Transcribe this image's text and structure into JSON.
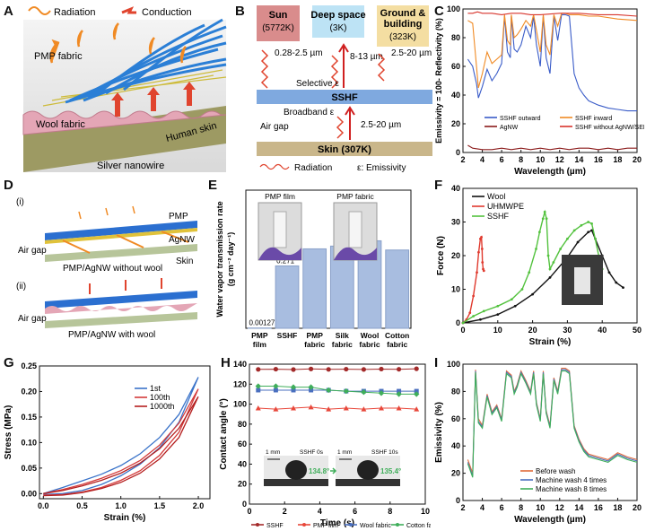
{
  "panels": {
    "A": {
      "letter": "A",
      "radiation": "Radiation",
      "conduction": "Conduction",
      "pmp_fabric": "PMP fabric",
      "wool_fabric": "Wool fabric",
      "silver_nanowire": "Silver nanowire",
      "human_skin": "Human skin"
    },
    "B": {
      "letter": "B",
      "sun": "Sun",
      "sun_temp": "(5772K)",
      "space": "Deep space",
      "space_temp": "(3K)",
      "ground": "Ground &",
      "ground2": "building",
      "ground_temp": "(323K)",
      "w1": "0.28-2.5 µm",
      "w2": "8-13 µm",
      "w3": "2.5-20 µm",
      "w4": "2.5-20 µm",
      "selective": "Selective ε",
      "ssfh": "SSHF",
      "broadband": "Broadband ε",
      "airgap": "Air gap",
      "skin": "Skin (307K)",
      "legend_rad": "Radiation",
      "legend_emis": "ε: Emissivity"
    },
    "D": {
      "letter": "D",
      "i": "(i)",
      "ii": "(ii)",
      "pmp": "PMP",
      "agnw": "AgNW",
      "airgap1": "Air gap",
      "skin": "Skin",
      "cap1": "PMP/AgNW without wool",
      "airgap2": "Air gap",
      "cap2": "PMP/AgNW with wool"
    },
    "E": {
      "letter": "E",
      "photo1": "PMP film",
      "photo2": "PMP fabric"
    },
    "F": {
      "letter": "F"
    },
    "G": {
      "letter": "G"
    },
    "H": {
      "letter": "H",
      "sb1": "1 mm",
      "img1": "SSHF 0s",
      "ang1": "134.8°",
      "sb2": "1 mm",
      "img2": "SSHF 10s",
      "ang2": "135.4°"
    },
    "I": {
      "letter": "I"
    },
    "C": {
      "letter": "C"
    }
  },
  "chart_data": [
    {
      "id": "C",
      "type": "line",
      "xlabel": "Wavelength (µm)",
      "ylabel": "Emissivity = 100- Reflectivity (%)",
      "xlim": [
        2,
        20
      ],
      "ylim": [
        0,
        100
      ],
      "xticks": [
        2,
        4,
        6,
        8,
        10,
        12,
        14,
        16,
        18,
        20
      ],
      "yticks": [
        0,
        20,
        40,
        60,
        80,
        100
      ],
      "series": [
        {
          "name": "SSHF outward",
          "color": "#3a5cc8",
          "x": [
            2.5,
            3,
            3.4,
            3.6,
            4,
            4.5,
            5,
            5.5,
            6,
            6.3,
            6.6,
            6.9,
            7,
            7.3,
            7.6,
            8,
            8.5,
            9,
            9.3,
            9.6,
            10,
            10.3,
            10.6,
            11,
            11.4,
            11.8,
            12.2,
            12.6,
            13,
            13.5,
            14,
            14.5,
            15,
            16,
            17,
            18,
            19,
            20
          ],
          "y": [
            65,
            60,
            48,
            38,
            46,
            58,
            50,
            55,
            62,
            95,
            70,
            66,
            95,
            72,
            70,
            75,
            88,
            80,
            95,
            75,
            60,
            95,
            66,
            55,
            95,
            78,
            96,
            96,
            95,
            55,
            45,
            40,
            36,
            33,
            31,
            30,
            29,
            29
          ]
        },
        {
          "name": "SSHF inward",
          "color": "#f08a24",
          "x": [
            2.5,
            3,
            3.4,
            3.6,
            4,
            4.5,
            5,
            5.5,
            6,
            6.3,
            6.6,
            6.9,
            7,
            7.3,
            7.6,
            8,
            8.5,
            9,
            9.3,
            9.6,
            10,
            10.3,
            10.6,
            11,
            11.4,
            11.8,
            12.2,
            12.6,
            13,
            14,
            15,
            16,
            18,
            20
          ],
          "y": [
            92,
            90,
            60,
            45,
            55,
            70,
            62,
            65,
            68,
            96,
            78,
            75,
            96,
            80,
            82,
            86,
            92,
            88,
            96,
            85,
            70,
            96,
            75,
            68,
            96,
            88,
            97,
            97,
            96,
            96,
            95,
            95,
            93,
            92
          ]
        },
        {
          "name": "AgNW",
          "color": "#8b1a1a",
          "x": [
            2.5,
            3,
            4,
            5,
            6,
            7,
            8,
            9,
            10,
            11,
            12,
            13,
            14,
            15,
            16,
            17,
            18,
            19,
            20
          ],
          "y": [
            5,
            3,
            2,
            2,
            3,
            2,
            3,
            2,
            3,
            2,
            3,
            2,
            3,
            3,
            2,
            3,
            2,
            3,
            3
          ]
        },
        {
          "name": "SSHF without AgNW/SEBS",
          "color": "#d8342c",
          "x": [
            2.5,
            3,
            3.5,
            4,
            5,
            6,
            7,
            8,
            9,
            10,
            12,
            14,
            16,
            18,
            20
          ],
          "y": [
            97,
            97,
            98,
            97,
            97,
            96,
            97,
            97,
            96,
            96,
            97,
            97,
            96,
            96,
            95
          ]
        }
      ]
    },
    {
      "id": "E",
      "type": "bar",
      "ylabel": "Water vapor transmission rate",
      "ylabel2": "(g cm⁻² day⁻¹)",
      "ylim": [
        0,
        0.6
      ],
      "categories": [
        [
          "PMP",
          "film"
        ],
        [
          "SSHF"
        ],
        [
          "PMP",
          "fabric"
        ],
        [
          "Silk",
          "fabric"
        ],
        [
          "Wool",
          "fabric"
        ],
        [
          "Cotton",
          "fabric"
        ]
      ],
      "values": [
        0.00127,
        0.271,
        0.345,
        0.357,
        0.38,
        0.34
      ],
      "labels": [
        "0.00127",
        "0.271",
        "",
        "",
        "",
        ""
      ]
    },
    {
      "id": "F",
      "type": "line",
      "xlabel": "Strain (%)",
      "ylabel": "Force (N)",
      "xlim": [
        0,
        50
      ],
      "ylim": [
        0,
        40
      ],
      "xticks": [
        0,
        10,
        20,
        30,
        40,
        50
      ],
      "yticks": [
        0,
        10,
        20,
        30,
        40
      ],
      "series": [
        {
          "name": "Wool",
          "color": "#111111",
          "marker": true,
          "x": [
            0,
            5,
            10,
            15,
            20,
            25,
            30,
            33,
            36,
            37,
            38,
            40,
            42,
            44,
            46
          ],
          "y": [
            0,
            1,
            2.5,
            5,
            8.5,
            13.5,
            19.5,
            24,
            27,
            27.5,
            25,
            20,
            15,
            12,
            10.5
          ]
        },
        {
          "name": "UHMWPE",
          "color": "#e03a2e",
          "marker": true,
          "x": [
            0,
            1,
            2,
            3,
            4,
            4.5,
            5,
            5.3,
            5.5,
            5.6,
            5.8,
            6
          ],
          "y": [
            0,
            1,
            3,
            8,
            15,
            21,
            25,
            25.5,
            22,
            18,
            16,
            15.5
          ]
        },
        {
          "name": "SSHF",
          "color": "#53c23e",
          "marker": true,
          "x": [
            0,
            3,
            6,
            10,
            14,
            17,
            19,
            21,
            22,
            23,
            23.5,
            24,
            24.5,
            25,
            26,
            28,
            30,
            32,
            34,
            36,
            37,
            38,
            39,
            40
          ],
          "y": [
            0,
            2,
            3.5,
            5,
            7,
            10,
            15,
            22,
            27,
            31,
            33,
            31,
            20,
            16,
            18,
            22,
            25,
            27.5,
            29,
            30,
            29.5,
            25,
            20,
            16
          ]
        }
      ]
    },
    {
      "id": "G",
      "type": "line",
      "xlabel": "Strain (%)",
      "ylabel": "Stress (MPa)",
      "xlim": [
        -0.05,
        2.15
      ],
      "ylim": [
        -0.01,
        0.25
      ],
      "xticks": [
        0.0,
        0.5,
        1.0,
        1.5,
        2.0
      ],
      "yticks": [
        0.0,
        0.05,
        0.1,
        0.15,
        0.2,
        0.25
      ],
      "series": [
        {
          "name": "1st",
          "color": "#3a73c9",
          "x": [
            0,
            0.25,
            0.5,
            0.75,
            1,
            1.25,
            1.5,
            1.75,
            2,
            1.75,
            1.5,
            1.25,
            1,
            0.75,
            0.5,
            0.25,
            0
          ],
          "y": [
            0,
            0.012,
            0.025,
            0.038,
            0.055,
            0.078,
            0.11,
            0.155,
            0.228,
            0.14,
            0.09,
            0.058,
            0.035,
            0.018,
            0.006,
            0.0,
            -0.002
          ]
        },
        {
          "name": "100th",
          "color": "#d43b3b",
          "x": [
            0,
            0.25,
            0.5,
            0.75,
            1,
            1.25,
            1.5,
            1.75,
            2,
            1.75,
            1.5,
            1.25,
            1,
            0.75,
            0.5,
            0.25,
            0
          ],
          "y": [
            0,
            0.008,
            0.018,
            0.03,
            0.045,
            0.065,
            0.095,
            0.138,
            0.205,
            0.12,
            0.075,
            0.045,
            0.026,
            0.012,
            0.003,
            -0.002,
            -0.003
          ]
        },
        {
          "name": "1000th",
          "color": "#b52020",
          "x": [
            0,
            0.25,
            0.5,
            0.75,
            1,
            1.25,
            1.5,
            1.75,
            2,
            1.75,
            1.5,
            1.25,
            1,
            0.75,
            0.5,
            0.25,
            0
          ],
          "y": [
            0,
            0.006,
            0.015,
            0.026,
            0.04,
            0.06,
            0.088,
            0.128,
            0.19,
            0.11,
            0.068,
            0.04,
            0.022,
            0.01,
            0.002,
            -0.003,
            -0.004
          ]
        }
      ]
    },
    {
      "id": "H",
      "type": "line",
      "xlabel": "Time (s)",
      "ylabel": "Contact angle (°)",
      "xlim": [
        0,
        10
      ],
      "ylim": [
        0,
        140
      ],
      "xticks": [
        0,
        2,
        4,
        6,
        8,
        10
      ],
      "yticks": [
        0,
        20,
        40,
        60,
        80,
        100,
        120,
        140
      ],
      "series": [
        {
          "name": "SSHF",
          "color": "#a32a2a",
          "marker": "circle",
          "x": [
            0.5,
            1.5,
            2.5,
            3.5,
            4.5,
            5.5,
            6.5,
            7.5,
            8.5,
            9.5
          ],
          "y": [
            134.8,
            135,
            134.6,
            135.2,
            134.8,
            135,
            134.7,
            135.1,
            134.9,
            135.4
          ]
        },
        {
          "name": "PMP film",
          "color": "#e8473a",
          "marker": "triangle",
          "x": [
            0.5,
            1.5,
            2.5,
            3.5,
            4.5,
            5.5,
            6.5,
            7.5,
            8.5,
            9.5
          ],
          "y": [
            96,
            95,
            96,
            97,
            95,
            96,
            95,
            96,
            96,
            95
          ]
        },
        {
          "name": "Wool fabric",
          "color": "#4a6fbf",
          "marker": "square",
          "x": [
            0.5,
            1.5,
            2.5,
            3.5,
            4.5,
            5.5,
            6.5,
            7.5,
            8.5,
            9.5
          ],
          "y": [
            114,
            114,
            114,
            114,
            114,
            113,
            113,
            113,
            113,
            113
          ]
        },
        {
          "name": "Cotton fabric",
          "color": "#3fae5a",
          "marker": "diamond",
          "x": [
            0.5,
            1.5,
            2.5,
            3.5,
            4.5,
            5.5,
            6.5,
            7.5,
            8.5,
            9.5
          ],
          "y": [
            118,
            118,
            117,
            117,
            114,
            113,
            112,
            111,
            110,
            110
          ]
        }
      ]
    },
    {
      "id": "I",
      "type": "line",
      "xlabel": "Wavelength (µm)",
      "ylabel": "Emissivity (%)",
      "xlim": [
        2,
        20
      ],
      "ylim": [
        0,
        100
      ],
      "xticks": [
        2,
        4,
        6,
        8,
        10,
        12,
        14,
        16,
        18,
        20
      ],
      "yticks": [
        0,
        20,
        40,
        60,
        80,
        100
      ],
      "series": [
        {
          "name": "Before wash",
          "color": "#e06a3a",
          "x": [
            2.5,
            3,
            3.3,
            3.6,
            4,
            4.5,
            5,
            5.5,
            6,
            6.5,
            7,
            7.3,
            7.6,
            8,
            8.5,
            9,
            9.3,
            9.6,
            10,
            10.3,
            10.6,
            11,
            11.4,
            11.8,
            12.2,
            12.6,
            13,
            13.5,
            14,
            14.5,
            15,
            16,
            17,
            18,
            19,
            20
          ],
          "y": [
            30,
            20,
            96,
            60,
            55,
            78,
            65,
            70,
            60,
            95,
            92,
            80,
            85,
            95,
            88,
            80,
            95,
            72,
            60,
            95,
            66,
            55,
            90,
            80,
            97,
            97,
            95,
            55,
            45,
            38,
            34,
            32,
            30,
            35,
            32,
            30
          ]
        },
        {
          "name": "Machine wash 4 times",
          "color": "#4a6fbf",
          "x": [
            2.5,
            3,
            3.3,
            3.6,
            4,
            4.5,
            5,
            5.5,
            6,
            6.5,
            7,
            7.3,
            7.6,
            8,
            8.5,
            9,
            9.3,
            9.6,
            10,
            10.3,
            10.6,
            11,
            11.4,
            11.8,
            12.2,
            12.6,
            13,
            13.5,
            14,
            14.5,
            15,
            16,
            17,
            18,
            19,
            20
          ],
          "y": [
            28,
            18,
            95,
            58,
            54,
            77,
            64,
            69,
            59,
            94,
            91,
            79,
            84,
            94,
            87,
            79,
            94,
            71,
            59,
            94,
            65,
            54,
            89,
            79,
            96,
            96,
            94,
            54,
            44,
            37,
            33,
            31,
            29,
            34,
            31,
            29
          ]
        },
        {
          "name": "Machine wash 8 times",
          "color": "#3fae5a",
          "x": [
            2.5,
            3,
            3.3,
            3.6,
            4,
            4.5,
            5,
            5.5,
            6,
            6.5,
            7,
            7.3,
            7.6,
            8,
            8.5,
            9,
            9.3,
            9.6,
            10,
            10.3,
            10.6,
            11,
            11.4,
            11.8,
            12.2,
            12.6,
            13,
            13.5,
            14,
            14.5,
            15,
            16,
            17,
            18,
            19,
            20
          ],
          "y": [
            27,
            17,
            94,
            57,
            53,
            76,
            63,
            68,
            58,
            93,
            90,
            78,
            83,
            93,
            86,
            78,
            93,
            70,
            58,
            93,
            64,
            53,
            88,
            78,
            95,
            95,
            93,
            53,
            43,
            36,
            32,
            30,
            28,
            33,
            30,
            28
          ]
        }
      ]
    }
  ]
}
